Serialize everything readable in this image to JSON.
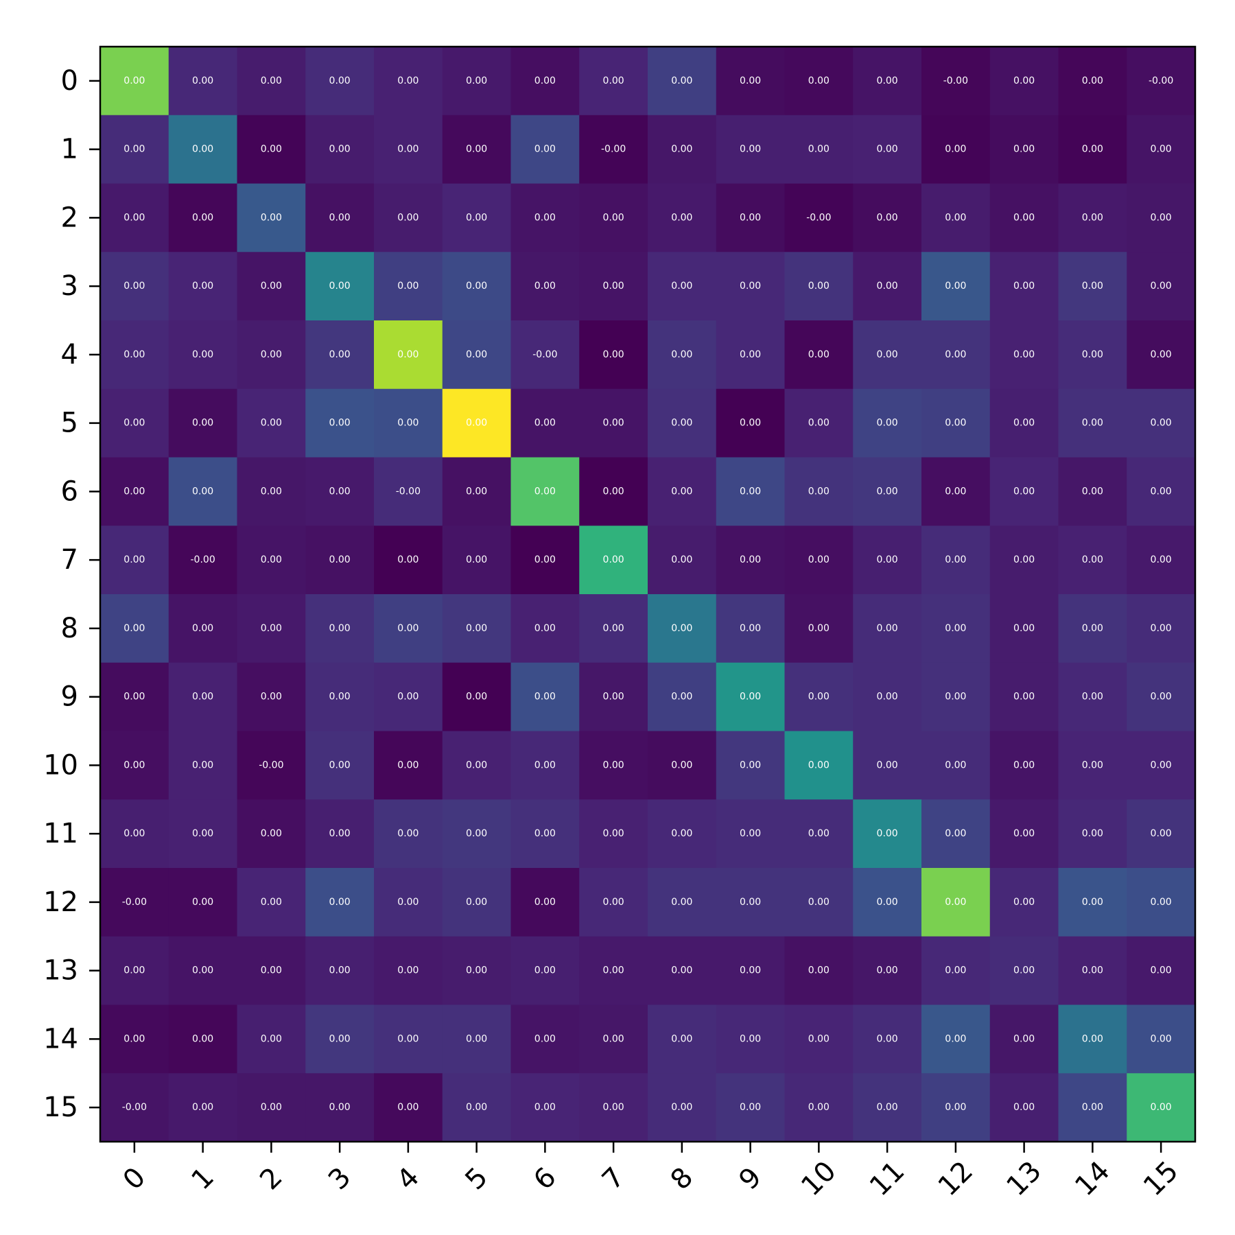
{
  "chart_data": {
    "type": "heatmap",
    "title": "",
    "xlabel": "",
    "ylabel": "",
    "x_tick_labels": [
      "0",
      "1",
      "2",
      "3",
      "4",
      "5",
      "6",
      "7",
      "8",
      "9",
      "10",
      "11",
      "12",
      "13",
      "14",
      "15"
    ],
    "y_tick_labels": [
      "0",
      "1",
      "2",
      "3",
      "4",
      "5",
      "6",
      "7",
      "8",
      "9",
      "10",
      "11",
      "12",
      "13",
      "14",
      "15"
    ],
    "colormap": "viridis",
    "colorbar": false,
    "grid": false,
    "x_tick_rotation_deg": 45,
    "cell_text_color": "#ffffff",
    "color_intensity": [
      [
        0.8,
        0.14,
        0.1,
        0.15,
        0.12,
        0.09,
        0.05,
        0.13,
        0.2,
        0.04,
        0.03,
        0.07,
        0.02,
        0.06,
        0.02,
        0.05
      ],
      [
        0.15,
        0.38,
        0.01,
        0.1,
        0.12,
        0.03,
        0.22,
        0.01,
        0.08,
        0.11,
        0.11,
        0.12,
        0.01,
        0.04,
        0.01,
        0.07
      ],
      [
        0.09,
        0.02,
        0.28,
        0.06,
        0.1,
        0.13,
        0.07,
        0.06,
        0.09,
        0.04,
        0.01,
        0.04,
        0.1,
        0.06,
        0.09,
        0.08
      ],
      [
        0.16,
        0.13,
        0.07,
        0.45,
        0.2,
        0.23,
        0.08,
        0.07,
        0.14,
        0.14,
        0.17,
        0.09,
        0.27,
        0.12,
        0.18,
        0.08
      ],
      [
        0.14,
        0.12,
        0.1,
        0.18,
        0.88,
        0.22,
        0.14,
        0.0,
        0.17,
        0.14,
        0.02,
        0.17,
        0.17,
        0.12,
        0.15,
        0.04
      ],
      [
        0.12,
        0.04,
        0.13,
        0.25,
        0.24,
        1.0,
        0.07,
        0.07,
        0.16,
        0.0,
        0.12,
        0.21,
        0.2,
        0.11,
        0.16,
        0.16
      ],
      [
        0.05,
        0.24,
        0.08,
        0.09,
        0.15,
        0.06,
        0.73,
        0.0,
        0.12,
        0.22,
        0.17,
        0.18,
        0.05,
        0.13,
        0.08,
        0.14
      ],
      [
        0.14,
        0.02,
        0.07,
        0.06,
        0.0,
        0.07,
        0.0,
        0.65,
        0.1,
        0.06,
        0.05,
        0.11,
        0.15,
        0.1,
        0.12,
        0.09
      ],
      [
        0.21,
        0.07,
        0.09,
        0.16,
        0.2,
        0.18,
        0.12,
        0.15,
        0.4,
        0.18,
        0.06,
        0.15,
        0.16,
        0.1,
        0.17,
        0.15
      ],
      [
        0.04,
        0.12,
        0.05,
        0.15,
        0.14,
        0.0,
        0.24,
        0.08,
        0.2,
        0.52,
        0.16,
        0.15,
        0.16,
        0.1,
        0.14,
        0.17
      ],
      [
        0.05,
        0.12,
        0.02,
        0.16,
        0.02,
        0.12,
        0.14,
        0.05,
        0.04,
        0.18,
        0.5,
        0.15,
        0.15,
        0.07,
        0.13,
        0.13
      ],
      [
        0.11,
        0.12,
        0.05,
        0.11,
        0.17,
        0.18,
        0.16,
        0.12,
        0.14,
        0.15,
        0.15,
        0.47,
        0.21,
        0.09,
        0.14,
        0.17
      ],
      [
        0.03,
        0.03,
        0.13,
        0.24,
        0.15,
        0.17,
        0.03,
        0.14,
        0.17,
        0.17,
        0.17,
        0.25,
        0.8,
        0.14,
        0.26,
        0.24
      ],
      [
        0.09,
        0.07,
        0.07,
        0.11,
        0.09,
        0.1,
        0.11,
        0.09,
        0.09,
        0.09,
        0.06,
        0.08,
        0.14,
        0.15,
        0.12,
        0.09
      ],
      [
        0.03,
        0.02,
        0.11,
        0.18,
        0.16,
        0.16,
        0.07,
        0.08,
        0.15,
        0.14,
        0.13,
        0.15,
        0.27,
        0.08,
        0.38,
        0.24
      ],
      [
        0.07,
        0.09,
        0.08,
        0.08,
        0.03,
        0.15,
        0.13,
        0.12,
        0.15,
        0.17,
        0.14,
        0.17,
        0.2,
        0.11,
        0.22,
        0.68
      ]
    ],
    "cell_labels": [
      [
        "0.00",
        "0.00",
        "0.00",
        "0.00",
        "0.00",
        "0.00",
        "0.00",
        "0.00",
        "0.00",
        "0.00",
        "0.00",
        "0.00",
        "-0.00",
        "0.00",
        "0.00",
        "-0.00"
      ],
      [
        "0.00",
        "0.00",
        "0.00",
        "0.00",
        "0.00",
        "0.00",
        "0.00",
        "-0.00",
        "0.00",
        "0.00",
        "0.00",
        "0.00",
        "0.00",
        "0.00",
        "0.00",
        "0.00"
      ],
      [
        "0.00",
        "0.00",
        "0.00",
        "0.00",
        "0.00",
        "0.00",
        "0.00",
        "0.00",
        "0.00",
        "0.00",
        "-0.00",
        "0.00",
        "0.00",
        "0.00",
        "0.00",
        "0.00"
      ],
      [
        "0.00",
        "0.00",
        "0.00",
        "0.00",
        "0.00",
        "0.00",
        "0.00",
        "0.00",
        "0.00",
        "0.00",
        "0.00",
        "0.00",
        "0.00",
        "0.00",
        "0.00",
        "0.00"
      ],
      [
        "0.00",
        "0.00",
        "0.00",
        "0.00",
        "0.00",
        "0.00",
        "-0.00",
        "0.00",
        "0.00",
        "0.00",
        "0.00",
        "0.00",
        "0.00",
        "0.00",
        "0.00",
        "0.00"
      ],
      [
        "0.00",
        "0.00",
        "0.00",
        "0.00",
        "0.00",
        "0.00",
        "0.00",
        "0.00",
        "0.00",
        "0.00",
        "0.00",
        "0.00",
        "0.00",
        "0.00",
        "0.00",
        "0.00"
      ],
      [
        "0.00",
        "0.00",
        "0.00",
        "0.00",
        "-0.00",
        "0.00",
        "0.00",
        "0.00",
        "0.00",
        "0.00",
        "0.00",
        "0.00",
        "0.00",
        "0.00",
        "0.00",
        "0.00"
      ],
      [
        "0.00",
        "-0.00",
        "0.00",
        "0.00",
        "0.00",
        "0.00",
        "0.00",
        "0.00",
        "0.00",
        "0.00",
        "0.00",
        "0.00",
        "0.00",
        "0.00",
        "0.00",
        "0.00"
      ],
      [
        "0.00",
        "0.00",
        "0.00",
        "0.00",
        "0.00",
        "0.00",
        "0.00",
        "0.00",
        "0.00",
        "0.00",
        "0.00",
        "0.00",
        "0.00",
        "0.00",
        "0.00",
        "0.00"
      ],
      [
        "0.00",
        "0.00",
        "0.00",
        "0.00",
        "0.00",
        "0.00",
        "0.00",
        "0.00",
        "0.00",
        "0.00",
        "0.00",
        "0.00",
        "0.00",
        "0.00",
        "0.00",
        "0.00"
      ],
      [
        "0.00",
        "0.00",
        "-0.00",
        "0.00",
        "0.00",
        "0.00",
        "0.00",
        "0.00",
        "0.00",
        "0.00",
        "0.00",
        "0.00",
        "0.00",
        "0.00",
        "0.00",
        "0.00"
      ],
      [
        "0.00",
        "0.00",
        "0.00",
        "0.00",
        "0.00",
        "0.00",
        "0.00",
        "0.00",
        "0.00",
        "0.00",
        "0.00",
        "0.00",
        "0.00",
        "0.00",
        "0.00",
        "0.00"
      ],
      [
        "-0.00",
        "0.00",
        "0.00",
        "0.00",
        "0.00",
        "0.00",
        "0.00",
        "0.00",
        "0.00",
        "0.00",
        "0.00",
        "0.00",
        "0.00",
        "0.00",
        "0.00",
        "0.00"
      ],
      [
        "0.00",
        "0.00",
        "0.00",
        "0.00",
        "0.00",
        "0.00",
        "0.00",
        "0.00",
        "0.00",
        "0.00",
        "0.00",
        "0.00",
        "0.00",
        "0.00",
        "0.00",
        "0.00"
      ],
      [
        "0.00",
        "0.00",
        "0.00",
        "0.00",
        "0.00",
        "0.00",
        "0.00",
        "0.00",
        "0.00",
        "0.00",
        "0.00",
        "0.00",
        "0.00",
        "0.00",
        "0.00",
        "0.00"
      ],
      [
        "-0.00",
        "0.00",
        "0.00",
        "0.00",
        "0.00",
        "0.00",
        "0.00",
        "0.00",
        "0.00",
        "0.00",
        "0.00",
        "0.00",
        "0.00",
        "0.00",
        "0.00",
        "0.00"
      ]
    ]
  }
}
